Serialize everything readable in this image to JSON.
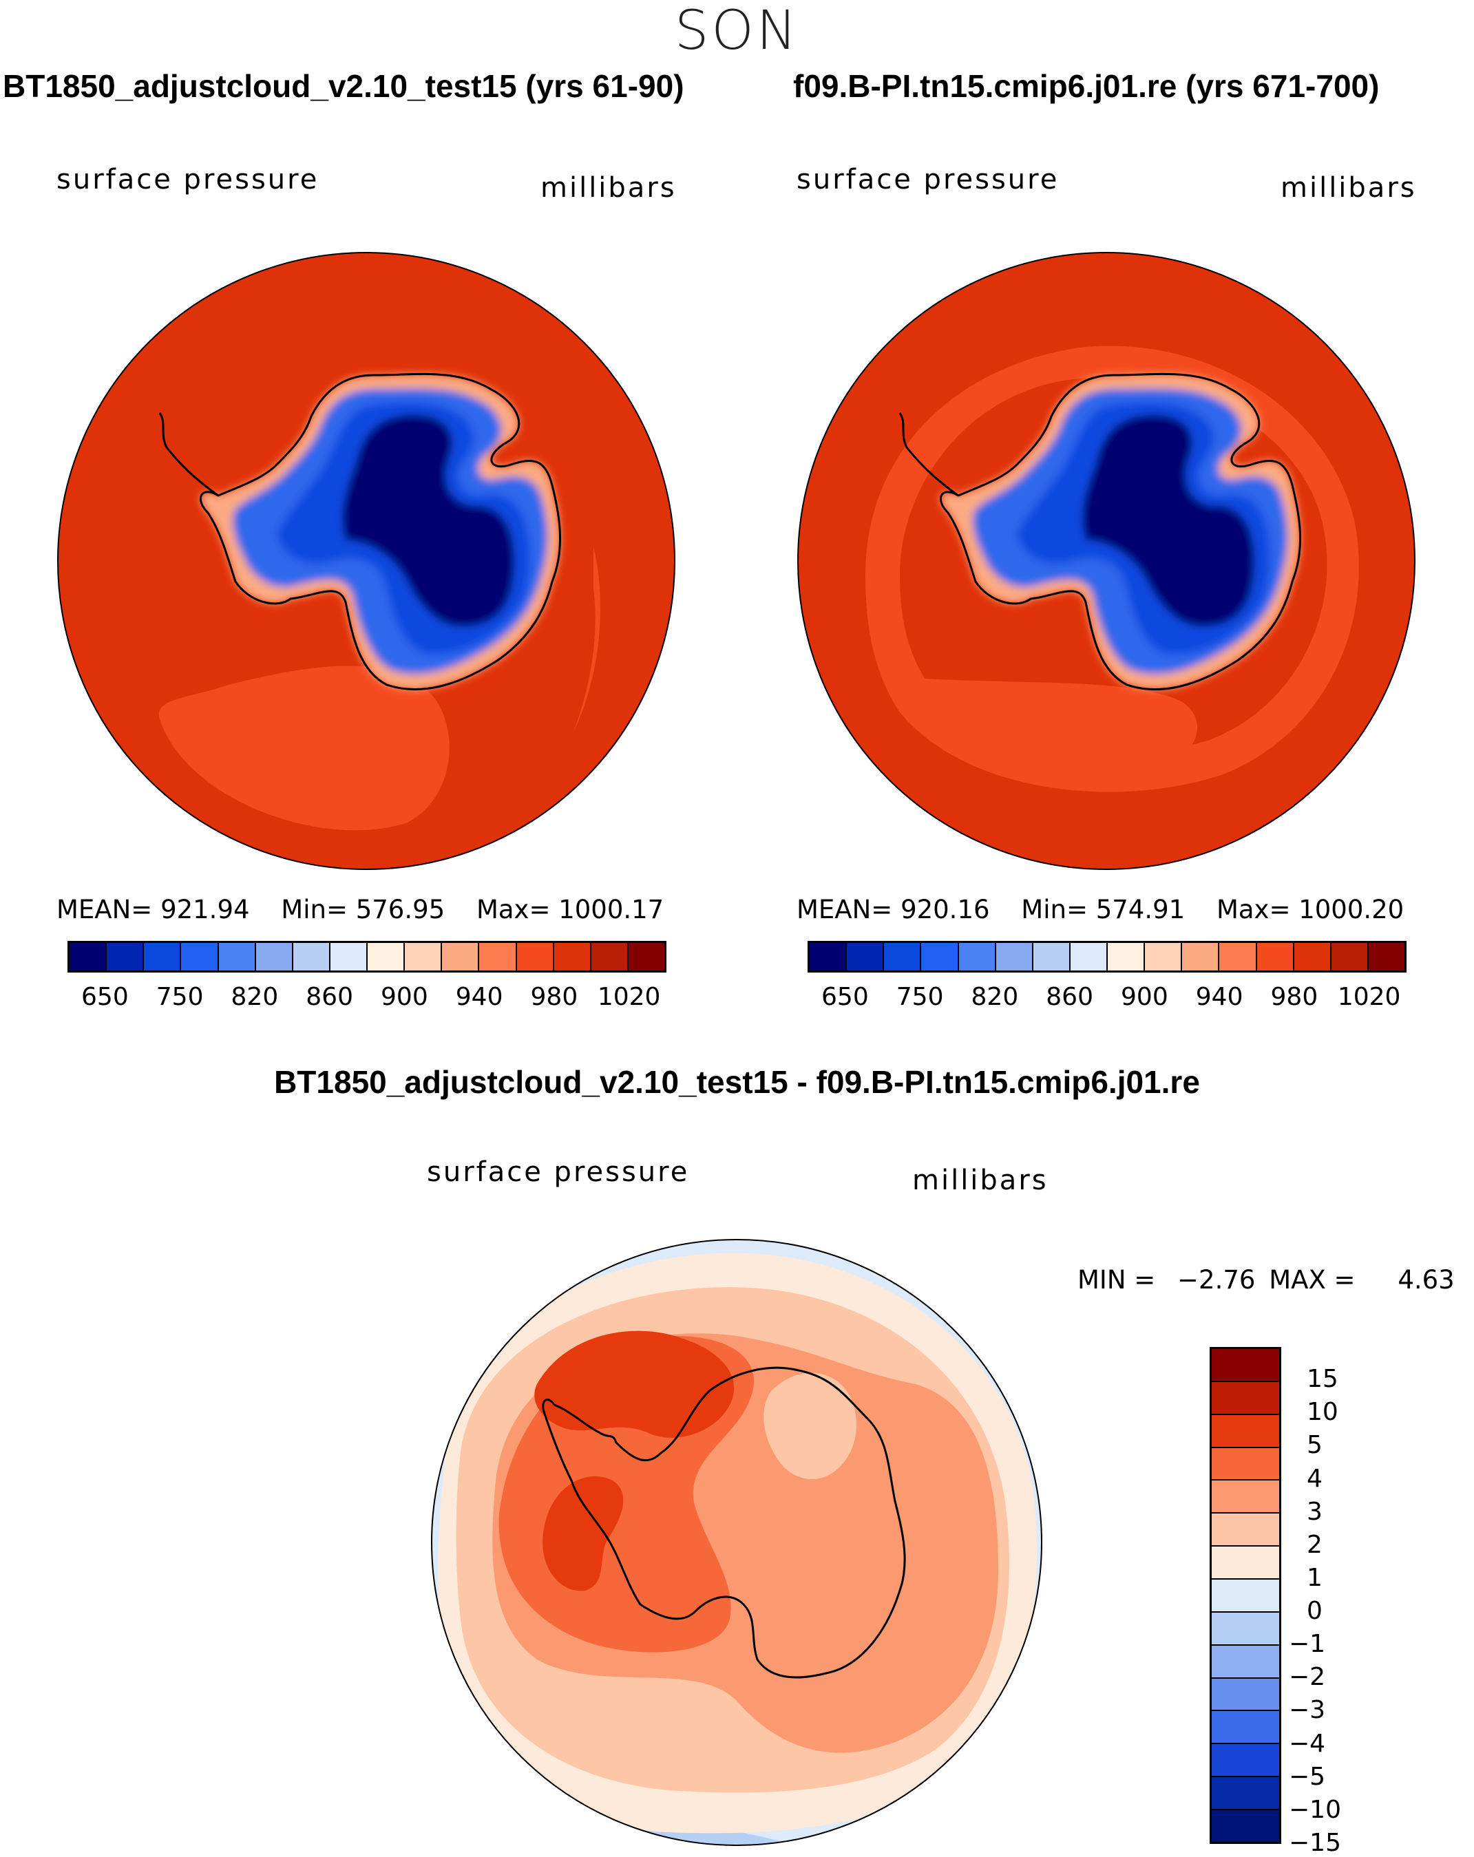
{
  "season": "SON",
  "panels": [
    {
      "title": "BT1850_adjustcloud_v2.10_test15 (yrs 61-90)",
      "variable": "surface pressure",
      "units": "millibars",
      "stats": {
        "mean_label": "MEAN=",
        "mean": "921.94",
        "min_label": "Min=",
        "min": "576.95",
        "max_label": "Max=",
        "max": "1000.17"
      },
      "colorbar_colors": [
        "#000070",
        "#0025b0",
        "#0a48e0",
        "#2060f5",
        "#4a82f2",
        "#88aaf0",
        "#b8cff5",
        "#dceafc",
        "#fff0e0",
        "#ffd2b8",
        "#fcaa82",
        "#fb7c4e",
        "#f54a1e",
        "#e03208",
        "#b81e02",
        "#800000"
      ],
      "tick_labels": [
        "650",
        "750",
        "820",
        "860",
        "900",
        "940",
        "980",
        "1020"
      ]
    },
    {
      "title": "f09.B-PI.tn15.cmip6.j01.re (yrs 671-700)",
      "variable": "surface pressure",
      "units": "millibars",
      "stats": {
        "mean_label": "MEAN=",
        "mean": "920.16",
        "min_label": "Min=",
        "min": "574.91",
        "max_label": "Max=",
        "max": "1000.20"
      },
      "colorbar_colors": [
        "#000070",
        "#0025b0",
        "#0a48e0",
        "#2060f5",
        "#4a82f2",
        "#88aaf0",
        "#b8cff5",
        "#dceafc",
        "#fff0e0",
        "#ffd2b8",
        "#fcaa82",
        "#fb7c4e",
        "#f54a1e",
        "#e03208",
        "#b81e02",
        "#800000"
      ],
      "tick_labels": [
        "650",
        "750",
        "820",
        "860",
        "900",
        "940",
        "980",
        "1020"
      ]
    }
  ],
  "diff": {
    "title": "BT1850_adjustcloud_v2.10_test15 - f09.B-PI.tn15.cmip6.j01.re",
    "variable": "surface pressure",
    "units": "millibars",
    "min_label": "MIN =",
    "min": "−2.76",
    "max_label": "MAX =",
    "max": "4.63",
    "colorbar_colors": [
      "#8a0000",
      "#c01e04",
      "#e63a0e",
      "#f6673a",
      "#fb9a70",
      "#fdc6a6",
      "#feeadb",
      "#dceaf9",
      "#b6cff5",
      "#8eb0f3",
      "#6690f0",
      "#3c6cec",
      "#1746d6",
      "#052aa8",
      "#001478"
    ],
    "tick_labels": [
      "15",
      "10",
      "5",
      "4",
      "3",
      "2",
      "1",
      "0",
      "−1",
      "−2",
      "−3",
      "−4",
      "−5",
      "−10",
      "−15"
    ]
  }
}
